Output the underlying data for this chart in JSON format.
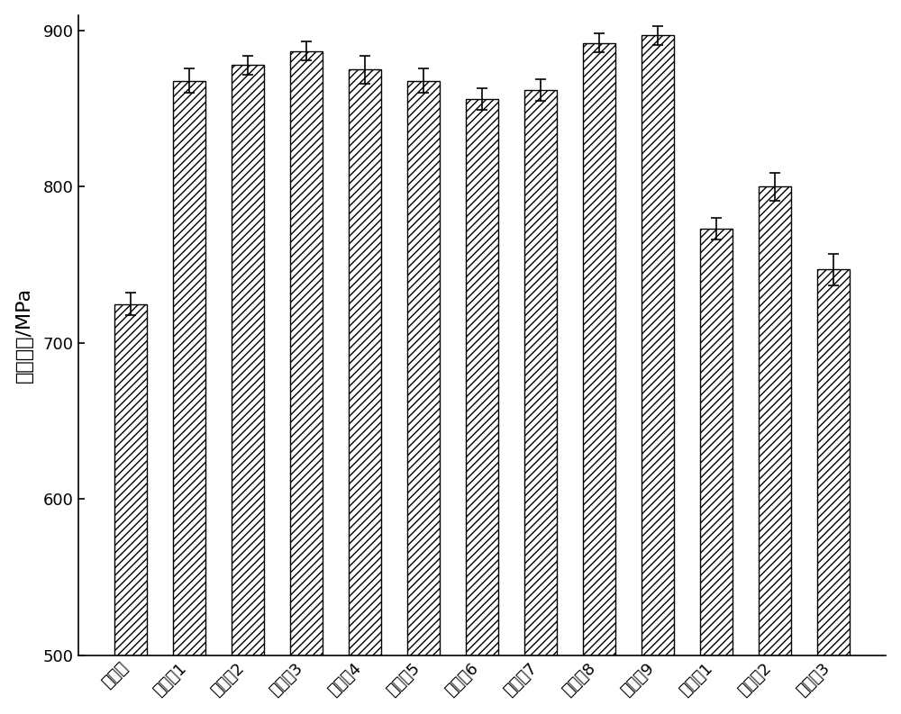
{
  "categories": [
    "对照组",
    "实施例1",
    "实施例2",
    "实施例3",
    "实施例4",
    "实施例5",
    "实施例6",
    "实施例7",
    "实施例8",
    "实施例9",
    "对比例1",
    "对比例2",
    "对比例3"
  ],
  "values": [
    725,
    868,
    878,
    887,
    875,
    868,
    856,
    862,
    892,
    897,
    773,
    800,
    747
  ],
  "errors": [
    7,
    8,
    6,
    6,
    9,
    8,
    7,
    7,
    6,
    6,
    7,
    9,
    10
  ],
  "ylabel": "抗弯强度/MPa",
  "ylim": [
    500,
    910
  ],
  "yticks": [
    500,
    600,
    700,
    800,
    900
  ],
  "bar_color": "white",
  "bar_edgecolor": "black",
  "hatch": "////",
  "bar_width": 0.55,
  "figsize": [
    10.0,
    7.93
  ],
  "dpi": 100,
  "ylabel_fontsize": 16,
  "tick_fontsize": 13,
  "xtick_rotation": 45
}
